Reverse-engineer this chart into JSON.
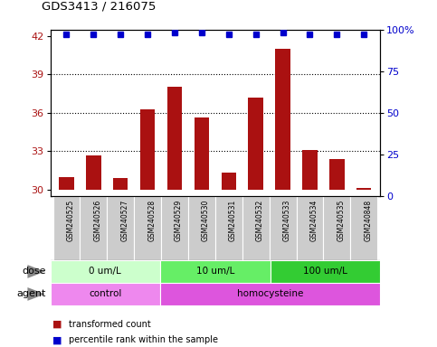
{
  "title": "GDS3413 / 216075",
  "samples": [
    "GSM240525",
    "GSM240526",
    "GSM240527",
    "GSM240528",
    "GSM240529",
    "GSM240530",
    "GSM240531",
    "GSM240532",
    "GSM240533",
    "GSM240534",
    "GSM240535",
    "GSM240848"
  ],
  "transformed_counts": [
    31.0,
    32.7,
    30.9,
    36.3,
    38.0,
    35.6,
    31.3,
    37.2,
    41.0,
    33.1,
    32.4,
    30.1
  ],
  "percentile_ranks": [
    97,
    97,
    97,
    97,
    98,
    98,
    97,
    97,
    98,
    97,
    97,
    97
  ],
  "bar_color": "#aa1111",
  "dot_color": "#0000cc",
  "ylim_left": [
    29.5,
    42.5
  ],
  "ylim_right": [
    0,
    100
  ],
  "yticks_left": [
    30,
    33,
    36,
    39,
    42
  ],
  "yticks_right": [
    0,
    25,
    50,
    75,
    100
  ],
  "ytick_labels_right": [
    "0",
    "25",
    "50",
    "75",
    "100%"
  ],
  "dose_groups": [
    {
      "label": "0 um/L",
      "start": 0,
      "end": 4,
      "color": "#ccffcc"
    },
    {
      "label": "10 um/L",
      "start": 4,
      "end": 8,
      "color": "#66ee66"
    },
    {
      "label": "100 um/L",
      "start": 8,
      "end": 12,
      "color": "#33cc33"
    }
  ],
  "agent_groups": [
    {
      "label": "control",
      "start": 0,
      "end": 4,
      "color": "#ee88ee"
    },
    {
      "label": "homocysteine",
      "start": 4,
      "end": 12,
      "color": "#dd55dd"
    }
  ],
  "dose_label": "dose",
  "agent_label": "agent",
  "legend_bar_label": "transformed count",
  "legend_dot_label": "percentile rank within the sample",
  "grid_yticks": [
    33,
    36,
    39
  ],
  "background_color": "#ffffff",
  "tick_area_color": "#cccccc",
  "bar_bottom": 30.0
}
